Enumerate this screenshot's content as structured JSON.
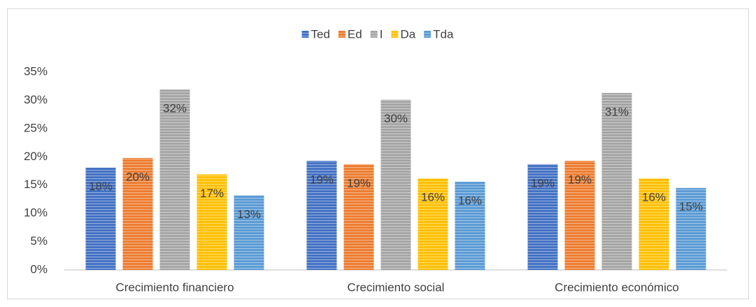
{
  "chart_data": {
    "type": "bar",
    "categories": [
      "Crecimiento financiero",
      "Crecimiento social",
      "Crecimiento económico"
    ],
    "series": [
      {
        "name": "Ted",
        "color": "#4472c4",
        "values": [
          18.1,
          19.3,
          18.7
        ],
        "value_labels": [
          "18%",
          "19%",
          "19%"
        ]
      },
      {
        "name": "Ed",
        "color": "#ed7d31",
        "values": [
          19.8,
          18.7,
          19.3
        ],
        "value_labels": [
          "20%",
          "19%",
          "19%"
        ]
      },
      {
        "name": "I",
        "color": "#a5a5a5",
        "values": [
          31.9,
          30.1,
          31.3
        ],
        "value_labels": [
          "32%",
          "30%",
          "31%"
        ]
      },
      {
        "name": "Da",
        "color": "#ffc000",
        "values": [
          16.9,
          16.2,
          16.2
        ],
        "value_labels": [
          "17%",
          "16%",
          "16%"
        ]
      },
      {
        "name": "Tda",
        "color": "#5b9bd5",
        "values": [
          13.2,
          15.6,
          14.5
        ],
        "value_labels": [
          "13%",
          "16%",
          "15%"
        ]
      }
    ],
    "ylim": [
      0,
      35
    ],
    "yticks": [
      {
        "value": 0,
        "label": "0%"
      },
      {
        "value": 5,
        "label": "5%"
      },
      {
        "value": 10,
        "label": "10%"
      },
      {
        "value": 15,
        "label": "15%"
      },
      {
        "value": 20,
        "label": "20%"
      },
      {
        "value": 25,
        "label": "25%"
      },
      {
        "value": 30,
        "label": "30%"
      },
      {
        "value": 35,
        "label": "35%"
      }
    ],
    "grid": false,
    "legend": "top"
  }
}
